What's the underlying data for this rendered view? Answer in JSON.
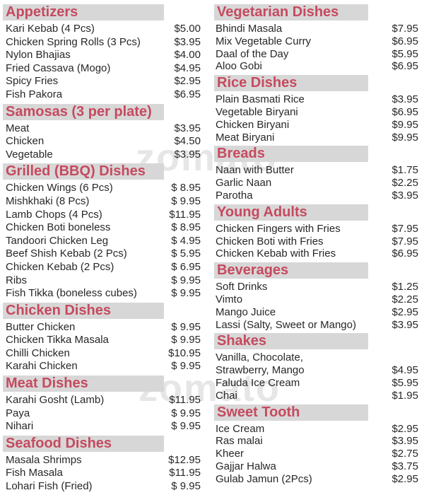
{
  "page": {
    "background": "#ffffff"
  },
  "colors": {
    "accent": "#c54a5f",
    "header_bar": "#d8d7d7",
    "item_text": "#272727",
    "watermark": "#e6e6e6"
  },
  "watermark": {
    "text": "zomato"
  },
  "columns": [
    {
      "id": "left",
      "sections": [
        {
          "title": "Appetizers",
          "items": [
            {
              "name": "Kari Kebab (4 Pcs)",
              "price": "$5.00"
            },
            {
              "name": "Chicken Spring Rolls (3 Pcs)",
              "price": "$3.95"
            },
            {
              "name": "Nylon Bhajias",
              "price": "$4.00"
            },
            {
              "name": "Fried Cassava (Mogo)",
              "price": "$4.95"
            },
            {
              "name": "Spicy Fries",
              "price": "$2.95"
            },
            {
              "name": "Fish Pakora",
              "price": "$6.95"
            }
          ]
        },
        {
          "title": "Samosas (3 per plate)",
          "items": [
            {
              "name": "Meat",
              "price": "$3.95"
            },
            {
              "name": "Chicken",
              "price": "$4.50"
            },
            {
              "name": "Vegetable",
              "price": "$3.95"
            }
          ]
        },
        {
          "title": "Grilled (BBQ) Dishes",
          "items": [
            {
              "name": "Chicken Wings (6 Pcs)",
              "price": "$ 8.95"
            },
            {
              "name": "Mishkhaki (8 Pcs)",
              "price": "$ 9.95"
            },
            {
              "name": "Lamb Chops (4 Pcs)",
              "price": "$11.95"
            },
            {
              "name": "Chicken Boti boneless",
              "price": "$ 8.95"
            },
            {
              "name": "Tandoori Chicken Leg",
              "price": "$ 4.95"
            },
            {
              "name": "Beef Shish Kebab (2 Pcs)",
              "price": "$ 5.95"
            },
            {
              "name": "Chicken Kebab (2 Pcs)",
              "price": "$ 6.95"
            },
            {
              "name": "Ribs",
              "price": "$ 9.95"
            },
            {
              "name": "Fish Tikka (boneless cubes)",
              "price": "$ 9.95"
            }
          ]
        },
        {
          "title": "Chicken Dishes",
          "items": [
            {
              "name": "Butter Chicken",
              "price": "$ 9.95"
            },
            {
              "name": "Chicken Tikka Masala",
              "price": "$ 9.95"
            },
            {
              "name": "Chilli Chicken",
              "price": "$10.95"
            },
            {
              "name": "Karahi Chicken",
              "price": "$ 9.95"
            }
          ]
        },
        {
          "title": "Meat Dishes",
          "items": [
            {
              "name": "Karahi Gosht (Lamb)",
              "price": "$11.95"
            },
            {
              "name": "Paya",
              "price": "$ 9.95"
            },
            {
              "name": "Nihari",
              "price": "$ 9.95"
            }
          ]
        },
        {
          "title": "Seafood Dishes",
          "items": [
            {
              "name": "Masala Shrimps",
              "price": "$12.95"
            },
            {
              "name": "Fish Masala",
              "price": "$11.95"
            },
            {
              "name": "Lohari Fish (Fried)",
              "price": "$ 9.95"
            }
          ]
        }
      ]
    },
    {
      "id": "right",
      "sections": [
        {
          "title": "Vegetarian Dishes",
          "items": [
            {
              "name": "Bhindi Masala",
              "price": "$7.95"
            },
            {
              "name": "Mix Vegetable Curry",
              "price": "$6.95"
            },
            {
              "name": "Daal of the Day",
              "price": "$5.95"
            },
            {
              "name": "Aloo Gobi",
              "price": "$6.95"
            }
          ]
        },
        {
          "title": "Rice Dishes",
          "items": [
            {
              "name": "Plain Basmati Rice",
              "price": "$3.95"
            },
            {
              "name": "Vegetable Biryani",
              "price": "$6.95"
            },
            {
              "name": "Chicken Biryani",
              "price": "$9.95"
            },
            {
              "name": "Meat Biryani",
              "price": "$9.95"
            }
          ]
        },
        {
          "title": "Breads",
          "items": [
            {
              "name": "Naan with Butter",
              "price": "$1.75"
            },
            {
              "name": "Garlic Naan",
              "price": "$2.25"
            },
            {
              "name": "Parotha",
              "price": "$3.95"
            }
          ]
        },
        {
          "title": "Young Adults",
          "items": [
            {
              "name": "Chicken Fingers with Fries",
              "price": "$7.95"
            },
            {
              "name": "Chicken Boti with Fries",
              "price": "$7.95"
            },
            {
              "name": "Chicken Kebab with Fries",
              "price": "$6.95"
            }
          ]
        },
        {
          "title": "Beverages",
          "items": [
            {
              "name": "Soft Drinks",
              "price": "$1.25"
            },
            {
              "name": "Vimto",
              "price": "$2.25"
            },
            {
              "name": "Mango Juice",
              "price": "$2.95"
            },
            {
              "name": "Lassi (Salty, Sweet or Mango)",
              "price": "$3.95"
            }
          ]
        },
        {
          "title": "Shakes",
          "items": [
            {
              "name": "Vanilla, Chocolate,",
              "price": ""
            },
            {
              "name": "Strawberry, Mango",
              "price": "$4.95"
            },
            {
              "name": "Faluda Ice Cream",
              "price": "$5.95"
            },
            {
              "name": "Chai",
              "price": "$1.95"
            }
          ]
        },
        {
          "title": "Sweet Tooth",
          "items": [
            {
              "name": "Ice Cream",
              "price": "$2.95"
            },
            {
              "name": "Ras malai",
              "price": "$3.95"
            },
            {
              "name": "Kheer",
              "price": "$2.75"
            },
            {
              "name": "Gajjar Halwa",
              "price": "$3.75"
            },
            {
              "name": "Gulab Jamun (2Pcs)",
              "price": "$2.95"
            }
          ]
        }
      ]
    }
  ]
}
